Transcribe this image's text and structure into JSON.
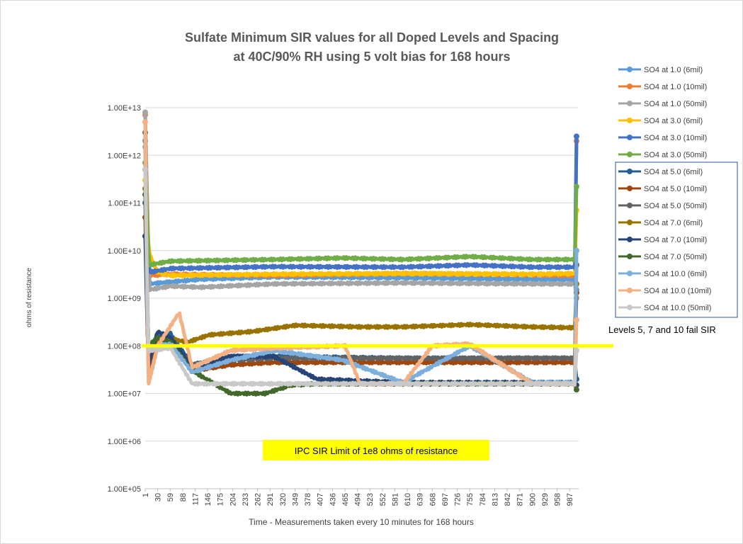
{
  "chart_data": {
    "type": "line",
    "title_lines": [
      "Sulfate Minimum SIR values  for all Doped Levels and Spacing",
      "at 40C/90% RH using 5 volt bias for 168 hours"
    ],
    "xlabel": "Time - Measurements taken every 10 minutes for 168 hours",
    "ylabel": "ohms of resistance",
    "yscale": "log",
    "ylim": [
      100000,
      10000000000000
    ],
    "y_tick_labels": [
      "1.00E+05",
      "1.00E+06",
      "1.00E+07",
      "1.00E+08",
      "1.00E+09",
      "1.00E+10",
      "1.00E+11",
      "1.00E+12",
      "1.00E+13"
    ],
    "xlim": [
      1,
      1008
    ],
    "x_tick_labels": [
      "1",
      "30",
      "59",
      "88",
      "117",
      "146",
      "175",
      "204",
      "233",
      "262",
      "291",
      "320",
      "349",
      "378",
      "407",
      "436",
      "465",
      "494",
      "523",
      "552",
      "581",
      "610",
      "639",
      "668",
      "697",
      "726",
      "755",
      "784",
      "813",
      "842",
      "871",
      "900",
      "929",
      "958",
      "987"
    ],
    "grid": "horizontal",
    "legend_position": "right",
    "reference_line": {
      "value": 100000000,
      "color": "#ffff00"
    },
    "annotations": [
      {
        "text": "IPC SIR Limit of 1e8 ohms of resistance",
        "background": "#ffff00"
      },
      {
        "text": "Levels 5, 7 and 10 fail SIR"
      }
    ],
    "series": [
      {
        "name": "SO4 at 1.0 (6mil)",
        "color": "#5b9bd5",
        "start": 2000000000000,
        "plateau": [
          [
            1,
            2000000000000
          ],
          [
            10,
            2000000000
          ],
          [
            60,
            2200000000
          ],
          [
            130,
            2500000000
          ],
          [
            300,
            2800000000
          ],
          [
            600,
            2700000000
          ],
          [
            900,
            2500000000
          ],
          [
            1000,
            2500000000
          ]
        ],
        "end": 1500000000
      },
      {
        "name": "SO4 at 1.0 (10mil)",
        "color": "#ed7d31",
        "start": 7000000000000,
        "plateau": [
          [
            1,
            7000000000000
          ],
          [
            10,
            3000000000
          ],
          [
            60,
            3200000000
          ],
          [
            300,
            3000000000
          ],
          [
            600,
            3300000000
          ],
          [
            900,
            3100000000
          ],
          [
            1000,
            3000000000
          ]
        ],
        "end": 2000000000000
      },
      {
        "name": "SO4 at 1.0  (50mil)",
        "color": "#a5a5a5",
        "start": 8000000000000,
        "plateau": [
          [
            1,
            8000000000000
          ],
          [
            10,
            1500000000
          ],
          [
            60,
            1800000000
          ],
          [
            130,
            1700000000
          ],
          [
            300,
            2000000000
          ],
          [
            600,
            2100000000
          ],
          [
            900,
            2000000000
          ],
          [
            1000,
            2000000000
          ]
        ],
        "end": 1000000000
      },
      {
        "name": "SO4 at 3.0 (6mil)",
        "color": "#ffc000",
        "start": 300000000000,
        "plateau": [
          [
            1,
            300000000000
          ],
          [
            10,
            9000000000
          ],
          [
            30,
            3500000000
          ],
          [
            60,
            3000000000
          ],
          [
            300,
            3200000000
          ],
          [
            600,
            3300000000
          ],
          [
            900,
            3200000000
          ],
          [
            1000,
            3300000000
          ]
        ],
        "end": 70000000000
      },
      {
        "name": "SO4 at 3.0 (10mil)",
        "color": "#4472c4",
        "start": 500000000000,
        "plateau": [
          [
            1,
            500000000000
          ],
          [
            10,
            3500000000
          ],
          [
            60,
            4200000000
          ],
          [
            300,
            4600000000
          ],
          [
            600,
            4500000000
          ],
          [
            755,
            5000000000
          ],
          [
            900,
            4500000000
          ],
          [
            1000,
            4500000000
          ]
        ],
        "end": 2500000000000
      },
      {
        "name": "SO4 at 3.0 (50mil)",
        "color": "#70ad47",
        "start": 700000000000,
        "plateau": [
          [
            1,
            700000000000
          ],
          [
            10,
            5000000000
          ],
          [
            60,
            6000000000
          ],
          [
            300,
            6500000000
          ],
          [
            460,
            7000000000
          ],
          [
            600,
            6500000000
          ],
          [
            755,
            7500000000
          ],
          [
            900,
            6500000000
          ],
          [
            1000,
            6500000000
          ]
        ],
        "end": 220000000000
      },
      {
        "name": "SO4 at 5.0 (6mil)",
        "color": "#255e91",
        "start": 100000000000,
        "plateau": [
          [
            1,
            100000000000
          ],
          [
            8,
            25000000
          ],
          [
            30,
            150000000
          ],
          [
            60,
            180000000
          ],
          [
            110,
            40000000
          ],
          [
            200,
            60000000
          ],
          [
            300,
            60000000
          ],
          [
            600,
            55000000
          ],
          [
            900,
            55000000
          ],
          [
            1000,
            55000000
          ]
        ],
        "end": 20000000
      },
      {
        "name": "SO4 at 5.0 (10mil)",
        "color": "#9e480e",
        "start": 50000000000,
        "plateau": [
          [
            1,
            50000000000
          ],
          [
            8,
            30000000
          ],
          [
            30,
            100000000
          ],
          [
            60,
            110000000
          ],
          [
            110,
            30000000
          ],
          [
            200,
            40000000
          ],
          [
            300,
            45000000
          ],
          [
            600,
            45000000
          ],
          [
            900,
            45000000
          ],
          [
            1000,
            45000000
          ]
        ],
        "end": 1300000000
      },
      {
        "name": "SO4 at 5.0 (50mil)",
        "color": "#636363",
        "start": 3000000000000,
        "plateau": [
          [
            1,
            3000000000000
          ],
          [
            8,
            60000000
          ],
          [
            30,
            120000000
          ],
          [
            60,
            120000000
          ],
          [
            110,
            40000000
          ],
          [
            200,
            50000000
          ],
          [
            300,
            55000000
          ],
          [
            600,
            55000000
          ],
          [
            900,
            55000000
          ],
          [
            1000,
            55000000
          ]
        ],
        "end": 5000000000
      },
      {
        "name": "SO4 at 7.0 (6mil)",
        "color": "#997300",
        "start": 200000000000,
        "plateau": [
          [
            1,
            200000000000
          ],
          [
            8,
            80000000
          ],
          [
            40,
            150000000
          ],
          [
            100,
            120000000
          ],
          [
            150,
            170000000
          ],
          [
            250,
            200000000
          ],
          [
            350,
            270000000
          ],
          [
            500,
            250000000
          ],
          [
            600,
            250000000
          ],
          [
            755,
            280000000
          ],
          [
            900,
            250000000
          ],
          [
            1000,
            240000000
          ]
        ],
        "end": 2000000000
      },
      {
        "name": "SO4 at 7.0 (10mil)",
        "color": "#264478",
        "start": 20000000000,
        "plateau": [
          [
            1,
            20000000000
          ],
          [
            8,
            40000000
          ],
          [
            30,
            200000000
          ],
          [
            60,
            150000000
          ],
          [
            110,
            35000000
          ],
          [
            200,
            60000000
          ],
          [
            300,
            60000000
          ],
          [
            400,
            20000000
          ],
          [
            600,
            17000000
          ],
          [
            900,
            17000000
          ],
          [
            1000,
            17000000
          ]
        ],
        "end": 15000000
      },
      {
        "name": "SO4 at 7.0 (50mil)",
        "color": "#43682b",
        "start": 150000000000,
        "plateau": [
          [
            1,
            150000000000
          ],
          [
            8,
            100000000
          ],
          [
            30,
            150000000
          ],
          [
            60,
            120000000
          ],
          [
            110,
            30000000
          ],
          [
            200,
            10000000
          ],
          [
            280,
            10000000
          ],
          [
            340,
            15000000
          ],
          [
            400,
            16000000
          ],
          [
            600,
            16000000
          ],
          [
            900,
            16000000
          ],
          [
            1000,
            16000000
          ]
        ],
        "end": 12000000
      },
      {
        "name": "SO4 at 10.0 (6mil)",
        "color": "#7cafdd",
        "start": 1500000000000,
        "plateau": [
          [
            1,
            1500000000000
          ],
          [
            8,
            15000000
          ],
          [
            30,
            100000000
          ],
          [
            60,
            110000000
          ],
          [
            110,
            28000000
          ],
          [
            200,
            50000000
          ],
          [
            300,
            80000000
          ],
          [
            460,
            50000000
          ],
          [
            600,
            17000000
          ],
          [
            755,
            100000000
          ],
          [
            900,
            17000000
          ],
          [
            1000,
            17000000
          ]
        ],
        "end": 10000000000
      },
      {
        "name": "SO4 at 10.0 (10mil)",
        "color": "#f4b183",
        "start": 5000000000000,
        "plateau": [
          [
            1,
            5000000000000
          ],
          [
            8,
            15000000
          ],
          [
            30,
            100000000
          ],
          [
            80,
            500000000
          ],
          [
            110,
            35000000
          ],
          [
            200,
            80000000
          ],
          [
            300,
            90000000
          ],
          [
            465,
            100000000
          ],
          [
            500,
            16000000
          ],
          [
            600,
            16000000
          ],
          [
            668,
            100000000
          ],
          [
            755,
            110000000
          ],
          [
            900,
            16000000
          ],
          [
            1000,
            16000000
          ]
        ],
        "end": 350000000
      },
      {
        "name": "SO4 at 10.0 (50mil)",
        "color": "#c9c9c9",
        "start": 500000000000,
        "plateau": [
          [
            1,
            500000000000
          ],
          [
            8,
            80000000
          ],
          [
            60,
            90000000
          ],
          [
            110,
            16000000
          ],
          [
            300,
            16000000
          ],
          [
            600,
            16000000
          ],
          [
            900,
            16000000
          ],
          [
            1000,
            16000000
          ]
        ],
        "end": 80000000
      }
    ]
  }
}
